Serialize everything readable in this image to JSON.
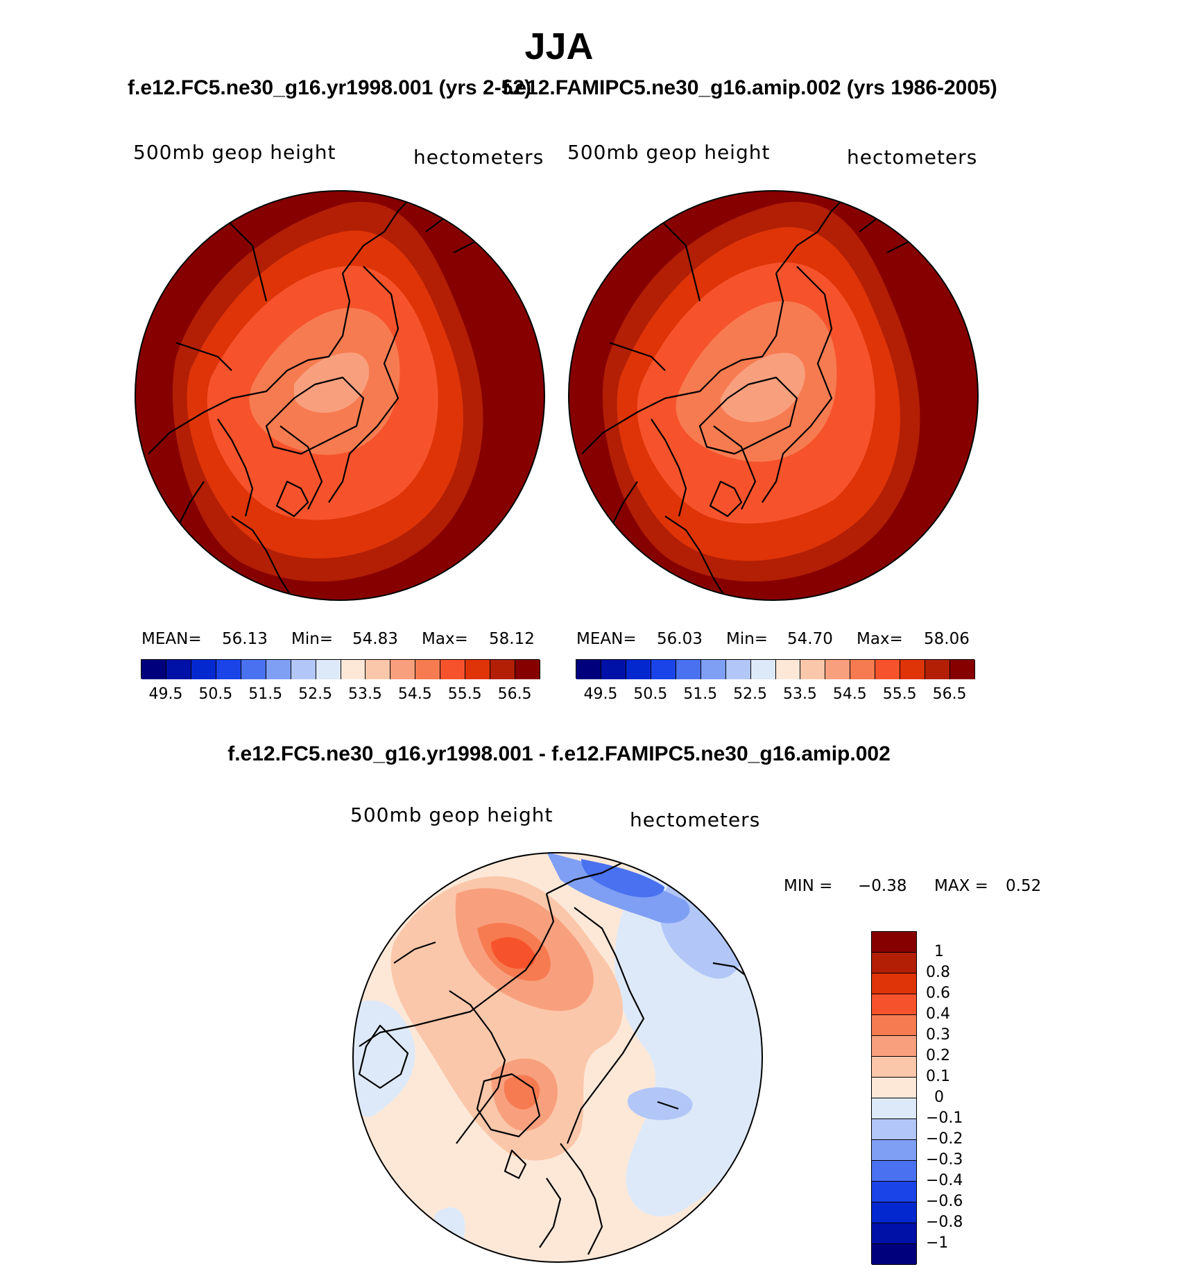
{
  "title": "JJA",
  "panels": [
    {
      "case_title": "f.e12.FC5.ne30_g16.yr1998.001 (yrs 2-52)",
      "variable": "500mb geop height",
      "units": "hectometers",
      "stats": {
        "mean_label": "MEAN=",
        "mean": "56.13",
        "min_label": "Min=",
        "min": "54.83",
        "max_label": "Max=",
        "max": "58.12"
      }
    },
    {
      "case_title": "f.e12.FAMIPC5.ne30_g16.amip.002 (yrs 1986-2005)",
      "variable": "500mb geop height",
      "units": "hectometers",
      "stats": {
        "mean_label": "MEAN=",
        "mean": "56.03",
        "min_label": "Min=",
        "min": "54.70",
        "max_label": "Max=",
        "max": "58.06"
      }
    }
  ],
  "field_colorbar": {
    "colors": [
      "#00007d",
      "#0011a8",
      "#0428d0",
      "#1b44e8",
      "#4a71ef",
      "#7f9ff4",
      "#b2c7f7",
      "#dde9f8",
      "#fde8d8",
      "#fbc7aa",
      "#f8a07e",
      "#f77b51",
      "#f6532c",
      "#de3408",
      "#b21f05",
      "#870000"
    ],
    "tick_labels": [
      "49.5",
      "50.5",
      "51.5",
      "52.5",
      "53.5",
      "54.5",
      "55.5",
      "56.5"
    ]
  },
  "difference": {
    "title": "f.e12.FC5.ne30_g16.yr1998.001 - f.e12.FAMIPC5.ne30_g16.amip.002",
    "variable": "500mb geop height",
    "units": "hectometers",
    "min_label": "MIN =",
    "min": "−0.38",
    "max_label": "MAX =",
    "max": "0.52",
    "colorbar": {
      "colors": [
        "#870000",
        "#b21f05",
        "#de3408",
        "#f6532c",
        "#f77b51",
        "#f8a07e",
        "#fbc7aa",
        "#fde8d8",
        "#dde9f8",
        "#b2c7f7",
        "#7f9ff4",
        "#4a71ef",
        "#1b44e8",
        "#0428d0",
        "#0011a8",
        "#00007d"
      ],
      "tick_labels": [
        "1",
        "0.8",
        "0.6",
        "0.4",
        "0.3",
        "0.2",
        "0.1",
        "0",
        "−0.1",
        "−0.2",
        "−0.3",
        "−0.4",
        "−0.6",
        "−0.8",
        "−1"
      ]
    }
  }
}
